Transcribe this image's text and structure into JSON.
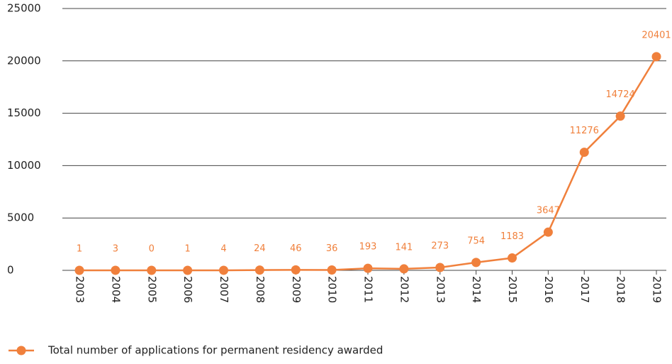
{
  "chart_data": {
    "type": "line",
    "categories": [
      "2003",
      "2004",
      "2005",
      "2006",
      "2007",
      "2008",
      "2009",
      "2010",
      "2011",
      "2012",
      "2013",
      "2014",
      "2015",
      "2016",
      "2017",
      "2018",
      "2019"
    ],
    "series": [
      {
        "name": "Total number of applications for permanent residency awarded",
        "color": "#f0803c",
        "values": [
          1,
          3,
          0,
          1,
          4,
          24,
          46,
          36,
          193,
          141,
          273,
          754,
          1183,
          3647,
          11276,
          14724,
          20401
        ]
      }
    ],
    "ylim": [
      0,
      25000
    ],
    "yticks": [
      0,
      5000,
      10000,
      15000,
      20000,
      25000
    ],
    "grid": true,
    "data_labels": true,
    "legend": "bottom"
  }
}
